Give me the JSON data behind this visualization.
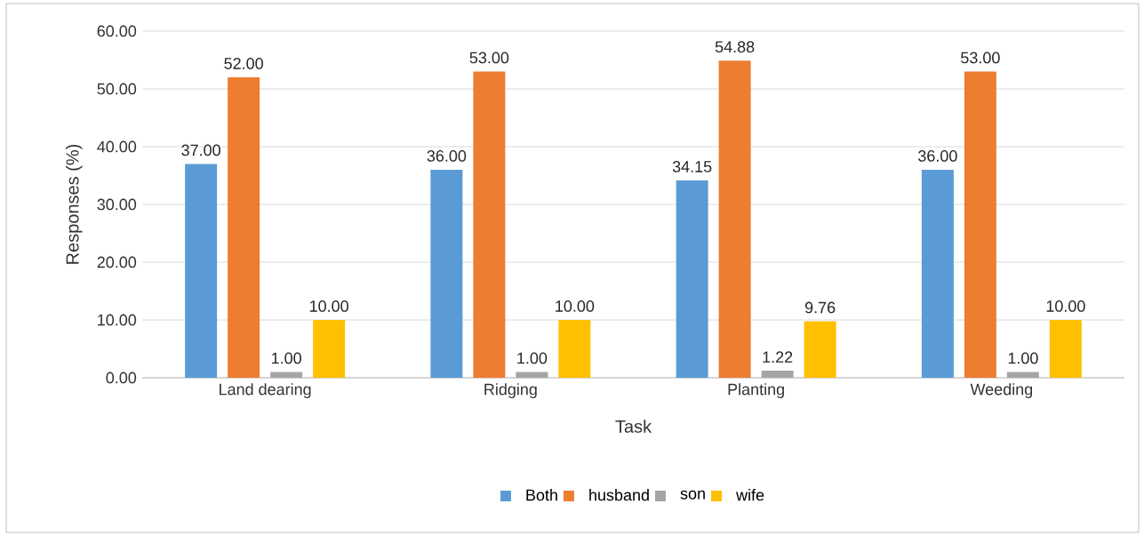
{
  "chart_data": {
    "type": "bar",
    "xlabel": "Task",
    "ylabel": "Responses (%)",
    "categories": [
      "Land dearing",
      "Ridging",
      "Planting",
      "Weeding"
    ],
    "series": [
      {
        "name": "Both",
        "color": "#5b9bd5",
        "values": [
          37,
          36,
          34.15,
          36
        ],
        "value_labels": [
          "37.00",
          "36.00",
          "34.15",
          "36.00"
        ]
      },
      {
        "name": "husband",
        "color": "#ed7d31",
        "values": [
          52,
          53,
          54.88,
          53
        ],
        "value_labels": [
          "52.00",
          "53.00",
          "54.88",
          "53.00"
        ]
      },
      {
        "name": "son",
        "color": "#a5a5a5",
        "values": [
          1,
          1,
          1.22,
          1
        ],
        "value_labels": [
          "1.00",
          "1.00",
          "1.22",
          "1.00"
        ]
      },
      {
        "name": "wife",
        "color": "#ffc000",
        "values": [
          10,
          10,
          9.76,
          10
        ],
        "value_labels": [
          "10.00",
          "10.00",
          "9.76",
          "10.00"
        ]
      }
    ],
    "ylim": [
      0,
      60
    ],
    "yticks": [
      {
        "value": 0,
        "label": "0.00"
      },
      {
        "value": 10,
        "label": "10.00"
      },
      {
        "value": 20,
        "label": "20.00"
      },
      {
        "value": 30,
        "label": "30.00"
      },
      {
        "value": 40,
        "label": "40.00"
      },
      {
        "value": 50,
        "label": "50.00"
      },
      {
        "value": 60,
        "label": "60.00"
      }
    ],
    "grid": "y",
    "legend": "bottom"
  }
}
